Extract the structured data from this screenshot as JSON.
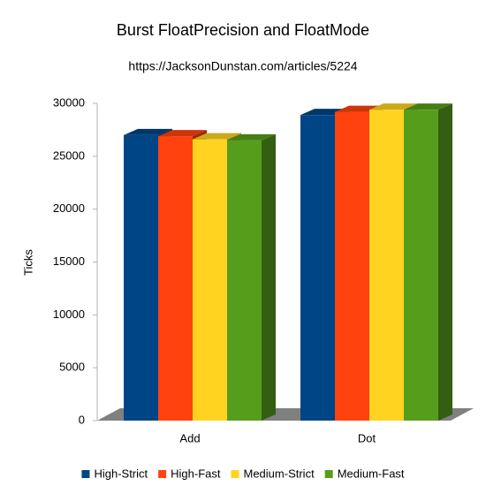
{
  "chart_data": {
    "type": "bar3d",
    "title": "Burst FloatPrecision and FloatMode",
    "subtitle": "https://JacksonDunstan.com/articles/5224",
    "y_label": "Ticks",
    "categories": [
      "Add",
      "Dot"
    ],
    "series": [
      {
        "name": "High-Strict",
        "color": "#004586",
        "values": [
          27000,
          28900
        ]
      },
      {
        "name": "High-Fast",
        "color": "#ff420e",
        "values": [
          26900,
          29200
        ]
      },
      {
        "name": "Medium-Strict",
        "color": "#ffd320",
        "values": [
          26600,
          29400
        ]
      },
      {
        "name": "Medium-Fast",
        "color": "#579d1c",
        "values": [
          26500,
          29400
        ]
      }
    ],
    "ylim": [
      0,
      30000
    ],
    "yticks": [
      0,
      5000,
      10000,
      15000,
      20000,
      25000,
      30000
    ],
    "legend": "bottom"
  }
}
